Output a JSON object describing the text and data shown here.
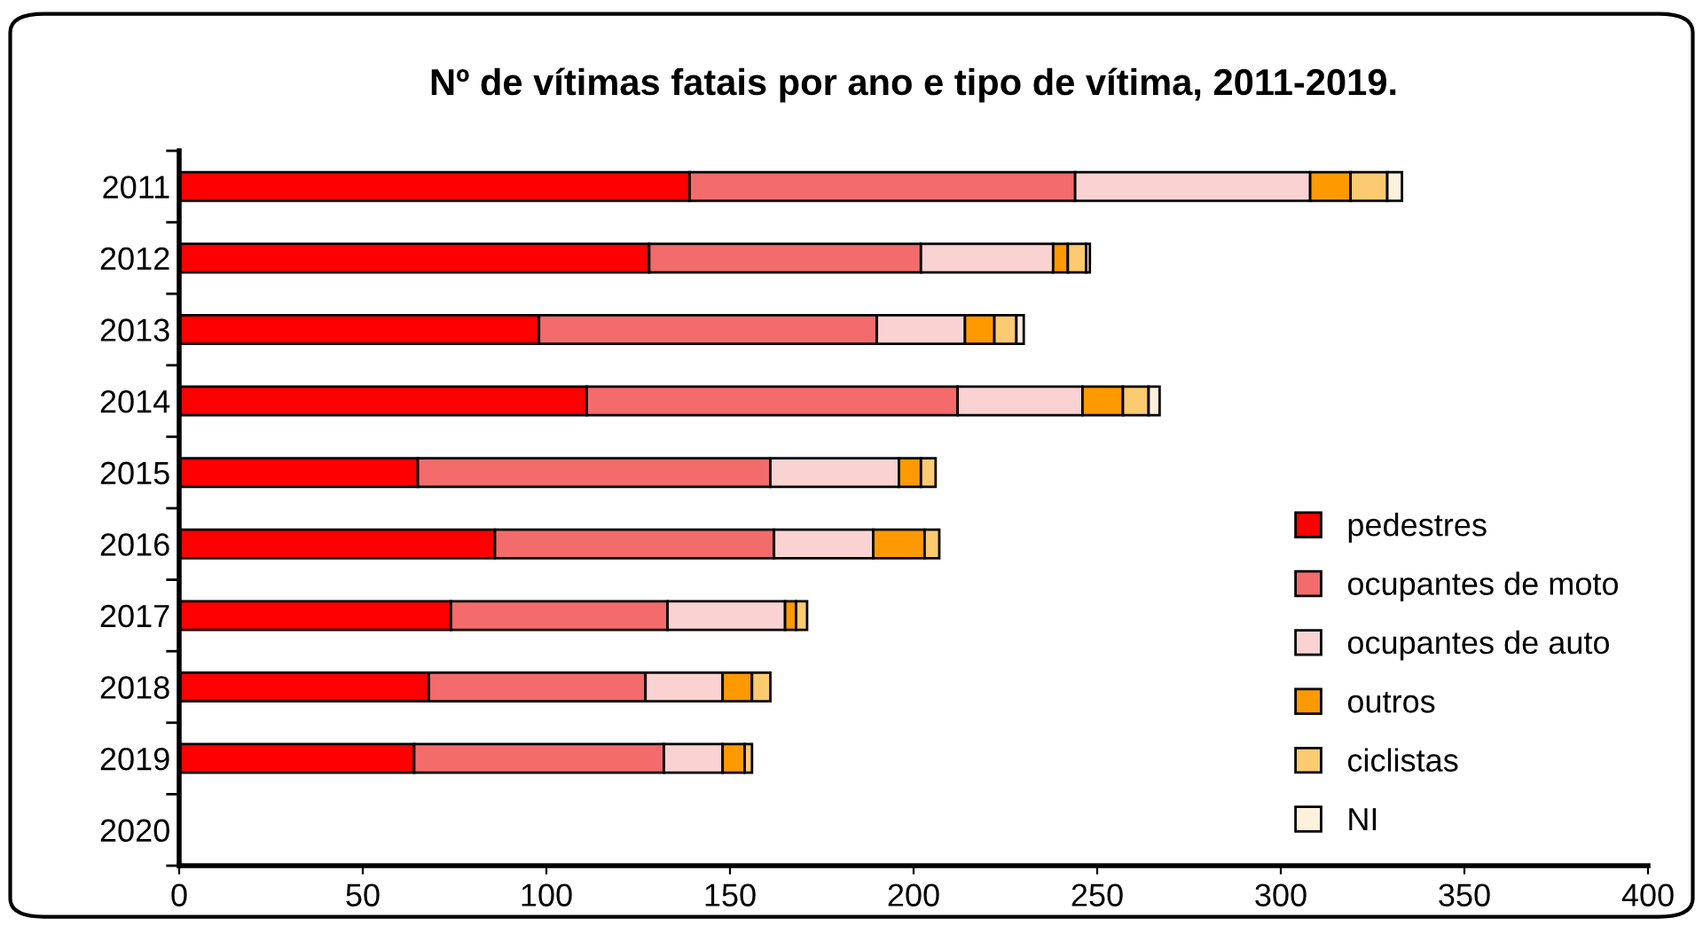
{
  "chart_data": {
    "type": "bar",
    "orientation": "horizontal",
    "stacked": true,
    "title": "Nº de vítimas fatais por ano e tipo de vítima, 2011-2019.",
    "categories": [
      "2011",
      "2012",
      "2013",
      "2014",
      "2015",
      "2016",
      "2017",
      "2018",
      "2019",
      "2020"
    ],
    "series": [
      {
        "name": "pedestres",
        "color": "#ff0000",
        "values": [
          139,
          128,
          98,
          111,
          65,
          86,
          74,
          68,
          64,
          null
        ]
      },
      {
        "name": "ocupantes de moto",
        "color": "#f36b6b",
        "values": [
          105,
          74,
          92,
          101,
          96,
          76,
          59,
          59,
          68,
          null
        ]
      },
      {
        "name": "ocupantes de auto",
        "color": "#fbd2d2",
        "values": [
          64,
          36,
          24,
          34,
          35,
          27,
          32,
          21,
          16,
          null
        ]
      },
      {
        "name": "outros",
        "color": "#ff9900",
        "values": [
          11,
          4,
          8,
          11,
          6,
          14,
          3,
          8,
          6,
          null
        ]
      },
      {
        "name": "ciclistas",
        "color": "#fcca70",
        "values": [
          10,
          5,
          6,
          7,
          4,
          4,
          3,
          5,
          2,
          null
        ]
      },
      {
        "name": "NI",
        "color": "#fdf0dc",
        "values": [
          4,
          1,
          2,
          3,
          null,
          null,
          null,
          null,
          null,
          null
        ]
      }
    ],
    "xlim": [
      0,
      400
    ],
    "xticks": [
      0,
      50,
      100,
      150,
      200,
      250,
      300,
      350,
      400
    ],
    "grid": false,
    "legend": "right"
  }
}
